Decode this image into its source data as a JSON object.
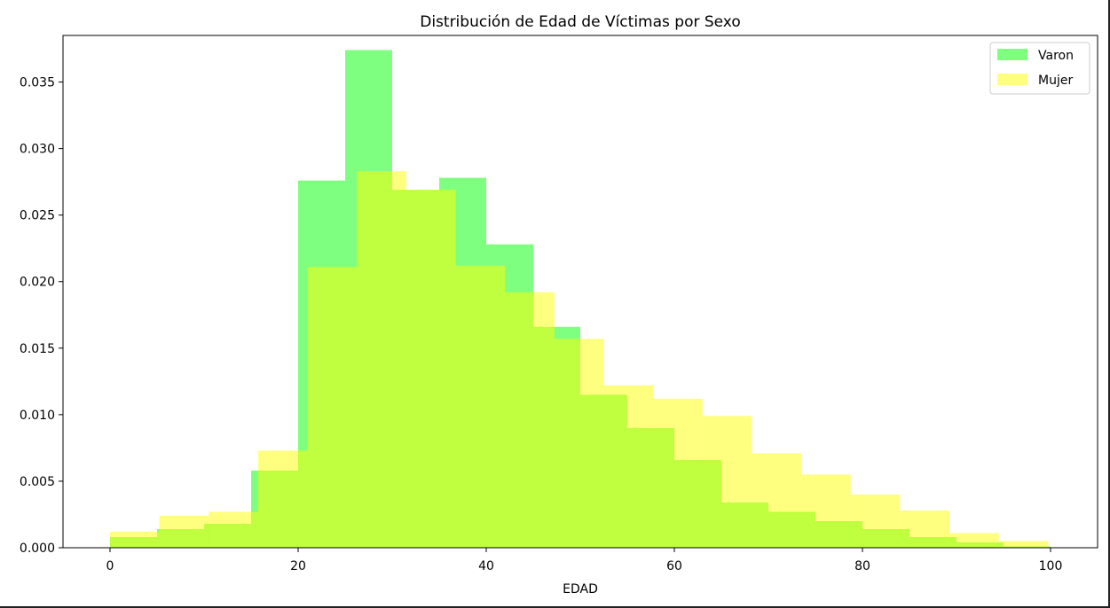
{
  "chart_data": {
    "type": "bar",
    "title": "Distribución de Edad de Víctimas por Sexo",
    "xlabel": "EDAD",
    "ylabel": "",
    "xlim": [
      -5,
      105
    ],
    "ylim": [
      0,
      0.0385
    ],
    "xticks": [
      0,
      20,
      40,
      60,
      80,
      100
    ],
    "yticks": [
      0.0,
      0.005,
      0.01,
      0.015,
      0.02,
      0.025,
      0.03,
      0.035
    ],
    "ytick_labels": [
      "0.000",
      "0.005",
      "0.010",
      "0.015",
      "0.020",
      "0.025",
      "0.030",
      "0.035"
    ],
    "legend_position": "top-right",
    "grid": false,
    "series": [
      {
        "name": "Varon",
        "color": "#00ff00",
        "alpha": 0.5,
        "bins": [
          [
            0,
            5
          ],
          [
            5,
            10
          ],
          [
            10,
            15
          ],
          [
            15,
            20
          ],
          [
            20,
            25
          ],
          [
            25,
            30
          ],
          [
            30,
            35
          ],
          [
            35,
            40
          ],
          [
            40,
            45
          ],
          [
            45,
            50
          ],
          [
            50,
            55
          ],
          [
            55,
            60
          ],
          [
            60,
            65
          ],
          [
            65,
            70
          ],
          [
            70,
            75
          ],
          [
            75,
            80
          ],
          [
            80,
            85
          ],
          [
            85,
            90
          ],
          [
            90,
            95
          ],
          [
            95,
            100
          ]
        ],
        "values": [
          0.0008,
          0.0014,
          0.0018,
          0.0058,
          0.0276,
          0.0374,
          0.0269,
          0.0278,
          0.0228,
          0.0166,
          0.0115,
          0.009,
          0.0066,
          0.0034,
          0.0027,
          0.002,
          0.0014,
          0.0008,
          0.0004,
          0.0001
        ]
      },
      {
        "name": "Mujer",
        "color": "#ffff00",
        "alpha": 0.5,
        "bins": [
          [
            0,
            5.25
          ],
          [
            5.25,
            10.5
          ],
          [
            10.5,
            15.75
          ],
          [
            15.75,
            21
          ],
          [
            21,
            26.25
          ],
          [
            26.25,
            31.5
          ],
          [
            31.5,
            36.75
          ],
          [
            36.75,
            42
          ],
          [
            42,
            47.25
          ],
          [
            47.25,
            52.5
          ],
          [
            52.5,
            57.75
          ],
          [
            57.75,
            63
          ],
          [
            63,
            68.25
          ],
          [
            68.25,
            73.5
          ],
          [
            73.5,
            78.75
          ],
          [
            78.75,
            84
          ],
          [
            84,
            89.25
          ],
          [
            89.25,
            94.5
          ],
          [
            94.5,
            99.75
          ]
        ],
        "values": [
          0.0012,
          0.0024,
          0.0027,
          0.0073,
          0.0211,
          0.0283,
          0.0269,
          0.0212,
          0.0192,
          0.0157,
          0.0122,
          0.0112,
          0.0099,
          0.0071,
          0.0055,
          0.004,
          0.0028,
          0.0011,
          0.0005
        ]
      }
    ]
  }
}
